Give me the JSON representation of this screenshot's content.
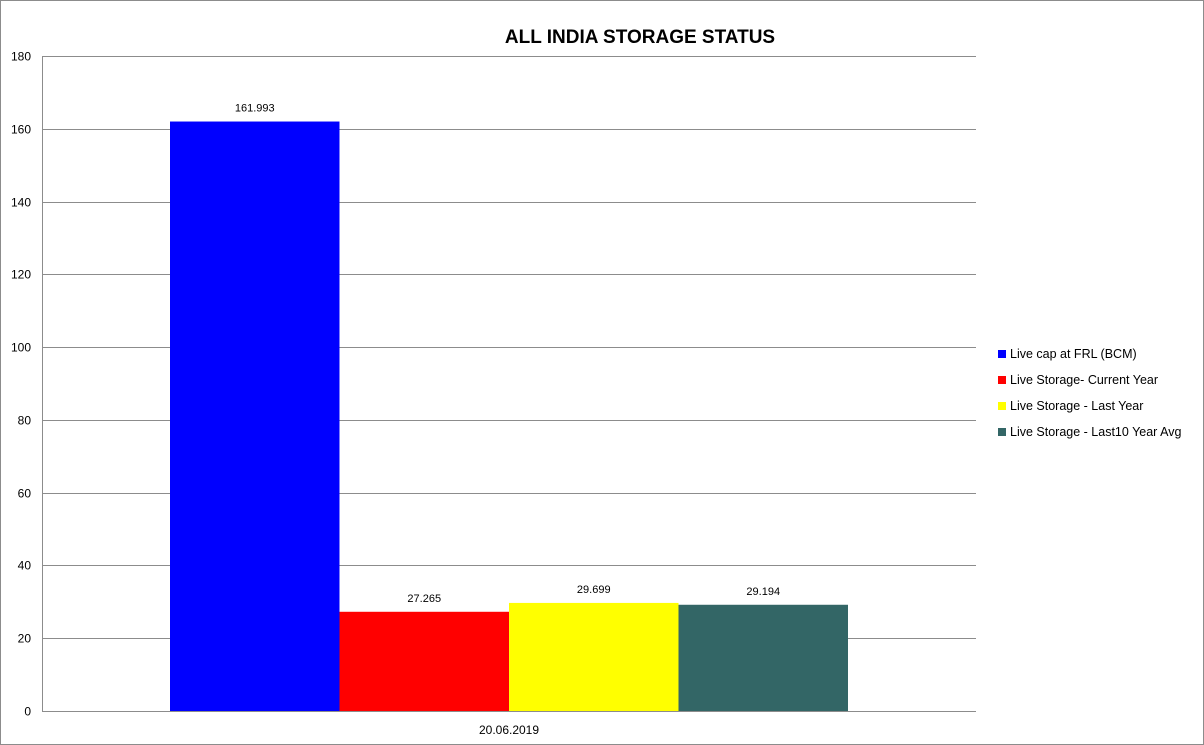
{
  "chart_data": {
    "type": "bar",
    "title": "ALL INDIA STORAGE STATUS",
    "xlabel": "",
    "ylabel": "",
    "categories": [
      "20.06.2019"
    ],
    "series": [
      {
        "name": "Live cap at FRL (BCM)",
        "values": [
          161.993
        ],
        "color": "#0000ff"
      },
      {
        "name": "Live Storage- Current Year",
        "values": [
          27.265
        ],
        "color": "#ff0000"
      },
      {
        "name": "Live Storage - Last Year",
        "values": [
          29.699
        ],
        "color": "#ffff00"
      },
      {
        "name": "Live Storage - Last10  Year Avg",
        "values": [
          29.194
        ],
        "color": "#336666"
      }
    ],
    "data_labels": [
      "161.993",
      "27.265",
      "29.699",
      "29.194"
    ],
    "ylim": [
      0,
      180
    ],
    "yticks": [
      0,
      20,
      40,
      60,
      80,
      100,
      120,
      140,
      160,
      180
    ],
    "grid": true,
    "legend_position": "right"
  }
}
